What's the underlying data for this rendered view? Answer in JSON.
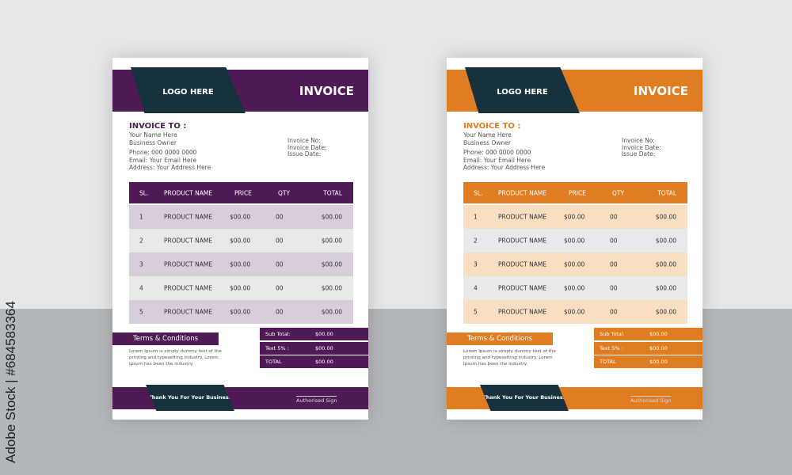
{
  "watermark": "Adobe Stock | #684583364",
  "invoices": [
    {
      "variant": "purple",
      "accent": "#4f1a56",
      "dark": "#17323d",
      "row_colors": [
        "#d8cdda",
        "#e8eae9"
      ],
      "logo": "LOGO HERE",
      "title": "INVOICE",
      "bill_to": {
        "heading": "INVOICE TO :",
        "name": "Your Name Here",
        "role": "Business Owner",
        "phone": "Phone: 000 0000 0000",
        "email": "Email: Your Email Here",
        "address": "Address: Your Address Here"
      },
      "meta": [
        "Invoice No:",
        "Invoice Date:",
        "Issue Date:"
      ],
      "columns": [
        "SL.",
        "PRODUCT NAME",
        "PRICE",
        "QTY",
        "TOTAL"
      ],
      "rows": [
        [
          "1",
          "PRODUCT NAME",
          "$00.00",
          "00",
          "$00.00"
        ],
        [
          "2",
          "PRODUCT NAME",
          "$00.00",
          "00",
          "$00.00"
        ],
        [
          "3",
          "PRODUCT NAME",
          "$00.00",
          "00",
          "$00.00"
        ],
        [
          "4",
          "PRODUCT NAME",
          "$00.00",
          "00",
          "$00.00"
        ],
        [
          "5",
          "PRODUCT NAME",
          "$00.00",
          "00",
          "$00.00"
        ]
      ],
      "terms_title": "Terms & Conditions",
      "terms_text": "Lorem Ipsum is simply dummy text of the printing and typesetting industry. Lorem Ipsum has been the industry.",
      "totals": [
        {
          "label": "Sub Total:",
          "value": "$00.00"
        },
        {
          "label": "Text 5% :",
          "value": "$00.00"
        },
        {
          "label": "TOTAL",
          "value": "$00.00"
        }
      ],
      "thanks": "Thank You For Your Business",
      "sign": "Authorised Sign"
    },
    {
      "variant": "orange",
      "accent": "#e07d22",
      "dark": "#17323d",
      "row_colors": [
        "#f8dfc2",
        "#e8eae9"
      ],
      "logo": "LOGO HERE",
      "title": "INVOICE",
      "bill_to": {
        "heading": "INVOICE TO :",
        "name": "Your Name Here",
        "role": "Business Owner",
        "phone": "Phone: 000 0000 0000",
        "email": "Email: Your Email Here",
        "address": "Address: Your Address Here"
      },
      "meta": [
        "Invoice No:",
        "Invoice Date:",
        "Issue Date:"
      ],
      "columns": [
        "SL.",
        "PRODUCT NAME",
        "PRICE",
        "QTY",
        "TOTAL"
      ],
      "rows": [
        [
          "1",
          "PRODUCT NAME",
          "$00.00",
          "00",
          "$00.00"
        ],
        [
          "2",
          "PRODUCT NAME",
          "$00.00",
          "00",
          "$00.00"
        ],
        [
          "3",
          "PRODUCT NAME",
          "$00.00",
          "00",
          "$00.00"
        ],
        [
          "4",
          "PRODUCT NAME",
          "$00.00",
          "00",
          "$00.00"
        ],
        [
          "5",
          "PRODUCT NAME",
          "$00.00",
          "00",
          "$00.00"
        ]
      ],
      "terms_title": "Terms & Conditions",
      "terms_text": "Lorem Ipsum is simply dummy text of the printing and typesetting industry. Lorem Ipsum has been the industry.",
      "totals": [
        {
          "label": "Sub Total:",
          "value": "$00.00"
        },
        {
          "label": "Text 5% :",
          "value": "$00.00"
        },
        {
          "label": "TOTAL",
          "value": "$00.00"
        }
      ],
      "thanks": "Thank You For Your Business",
      "sign": "Authorised Sign"
    }
  ]
}
